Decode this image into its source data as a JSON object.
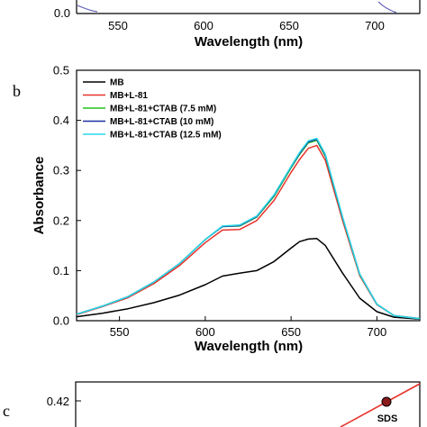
{
  "panel_a": {
    "y_tick": "0.0",
    "x_ticks": [
      "550",
      "600",
      "650",
      "700"
    ],
    "xlabel": "Wavelength (nm)"
  },
  "panel_b_label": "b",
  "panel_c_label": "c",
  "chart_data": [
    {
      "type": "line",
      "xlabel": "Wavelength (nm)",
      "ylabel": "Absorbance",
      "xlim": [
        525,
        725
      ],
      "ylim": [
        0.0,
        0.5
      ],
      "x_ticks": [
        "550",
        "600",
        "650",
        "700"
      ],
      "y_ticks": [
        "0.0",
        "0.1",
        "0.2",
        "0.3",
        "0.4",
        "0.5"
      ],
      "legend_position": "top-left",
      "x": [
        525,
        540,
        555,
        570,
        585,
        600,
        610,
        620,
        630,
        640,
        650,
        655,
        660,
        665,
        670,
        680,
        690,
        700,
        710,
        725
      ],
      "series": [
        {
          "name": "MB",
          "color": "#000000",
          "values": [
            0.008,
            0.015,
            0.024,
            0.036,
            0.051,
            0.072,
            0.089,
            0.095,
            0.1,
            0.118,
            0.145,
            0.158,
            0.163,
            0.164,
            0.15,
            0.095,
            0.045,
            0.018,
            0.007,
            0.003
          ]
        },
        {
          "name": "MB+L-81",
          "color": "#e8322a",
          "values": [
            0.012,
            0.028,
            0.046,
            0.074,
            0.11,
            0.156,
            0.181,
            0.182,
            0.2,
            0.24,
            0.296,
            0.322,
            0.344,
            0.35,
            0.32,
            0.2,
            0.09,
            0.032,
            0.01,
            0.004
          ]
        },
        {
          "name": "MB+L-81+CTAB (7.5 mM)",
          "color": "#22c222",
          "values": [
            0.013,
            0.029,
            0.048,
            0.077,
            0.114,
            0.162,
            0.188,
            0.189,
            0.207,
            0.248,
            0.305,
            0.332,
            0.355,
            0.36,
            0.328,
            0.205,
            0.092,
            0.033,
            0.01,
            0.004
          ]
        },
        {
          "name": "MB+L-81+CTAB (10 mM)",
          "color": "#1c2fa0",
          "values": [
            0.013,
            0.029,
            0.048,
            0.077,
            0.114,
            0.162,
            0.188,
            0.19,
            0.208,
            0.25,
            0.307,
            0.334,
            0.357,
            0.362,
            0.33,
            0.206,
            0.093,
            0.033,
            0.01,
            0.004
          ]
        },
        {
          "name": "MB+L-81+CTAB (12.5 mM)",
          "color": "#2ad7e8",
          "values": [
            0.013,
            0.029,
            0.048,
            0.077,
            0.114,
            0.162,
            0.189,
            0.191,
            0.209,
            0.251,
            0.308,
            0.336,
            0.359,
            0.364,
            0.332,
            0.207,
            0.093,
            0.033,
            0.01,
            0.004
          ]
        }
      ]
    },
    {
      "type": "scatter",
      "y_ticks": [
        "0.42"
      ],
      "annotations": [
        "SDS"
      ]
    }
  ]
}
